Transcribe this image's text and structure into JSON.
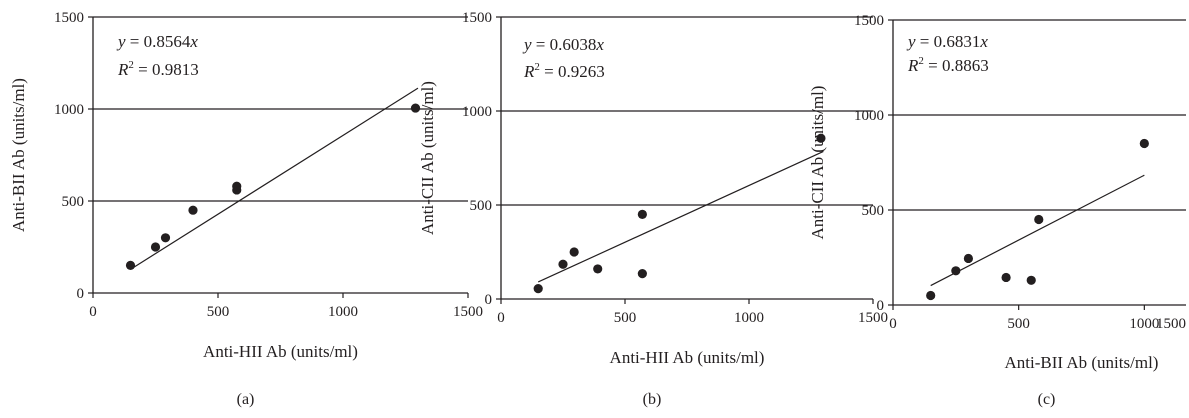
{
  "colors": {
    "ink": "#231f20",
    "background": "#ffffff"
  },
  "chart_data": [
    {
      "type": "scatter",
      "panel_label": "(a)",
      "xlabel": "Anti-HII Ab (units/ml)",
      "ylabel": "Anti-BII Ab (units/ml)",
      "xlim": [
        0,
        1500
      ],
      "ylim": [
        0,
        1500
      ],
      "xticks": [
        "0",
        "500",
        "1000",
        "1500"
      ],
      "yticks": [
        "0",
        "500",
        "1000",
        "1500"
      ],
      "grid": "horizontal",
      "equation": {
        "lhs": "y",
        "rhs": " = 0.8564",
        "var": "x"
      },
      "r2": {
        "label": "R",
        "sup": "2",
        "value": " = 0.9813"
      },
      "fit": {
        "slope": 0.8564,
        "x_range": [
          150,
          1300
        ]
      },
      "points": [
        {
          "x": 150,
          "y": 150
        },
        {
          "x": 250,
          "y": 250
        },
        {
          "x": 290,
          "y": 300
        },
        {
          "x": 400,
          "y": 450
        },
        {
          "x": 575,
          "y": 560
        },
        {
          "x": 575,
          "y": 580
        },
        {
          "x": 1290,
          "y": 1005
        }
      ]
    },
    {
      "type": "scatter",
      "panel_label": "(b)",
      "xlabel": "Anti-HII Ab (units/ml)",
      "ylabel": "Anti-CII Ab (units/ml)",
      "xlim": [
        0,
        1500
      ],
      "ylim": [
        0,
        1500
      ],
      "xticks": [
        "0",
        "500",
        "1000",
        "1500"
      ],
      "yticks": [
        "0",
        "500",
        "1000",
        "1500"
      ],
      "grid": "horizontal",
      "equation": {
        "lhs": "y",
        "rhs": " = 0.6038",
        "var": "x"
      },
      "r2": {
        "label": "R",
        "sup": "2",
        "value": " = 0.9263"
      },
      "fit": {
        "slope": 0.6038,
        "x_range": [
          150,
          1300
        ]
      },
      "points": [
        {
          "x": 150,
          "y": 55
        },
        {
          "x": 250,
          "y": 185
        },
        {
          "x": 295,
          "y": 250
        },
        {
          "x": 390,
          "y": 160
        },
        {
          "x": 570,
          "y": 450
        },
        {
          "x": 570,
          "y": 135
        },
        {
          "x": 1290,
          "y": 855
        }
      ]
    },
    {
      "type": "scatter",
      "panel_label": "(c)",
      "xlabel": "Anti-BII Ab (units/ml)",
      "ylabel": "Anti-CII Ab (units/ml)",
      "xlim": [
        0,
        1500
      ],
      "ylim": [
        0,
        1500
      ],
      "xticks": [
        "0",
        "500",
        "1000",
        "1500"
      ],
      "yticks": [
        "0",
        "500",
        "1000",
        "1500"
      ],
      "grid": "horizontal",
      "equation": {
        "lhs": "y",
        "rhs": " = 0.6831",
        "var": "x"
      },
      "r2": {
        "label": "R",
        "sup": "2",
        "value": " = 0.8863"
      },
      "fit": {
        "slope": 0.6831,
        "x_range": [
          150,
          1000
        ]
      },
      "points": [
        {
          "x": 150,
          "y": 50
        },
        {
          "x": 250,
          "y": 180
        },
        {
          "x": 300,
          "y": 245
        },
        {
          "x": 450,
          "y": 145
        },
        {
          "x": 550,
          "y": 130
        },
        {
          "x": 580,
          "y": 450
        },
        {
          "x": 1000,
          "y": 850
        }
      ]
    }
  ]
}
